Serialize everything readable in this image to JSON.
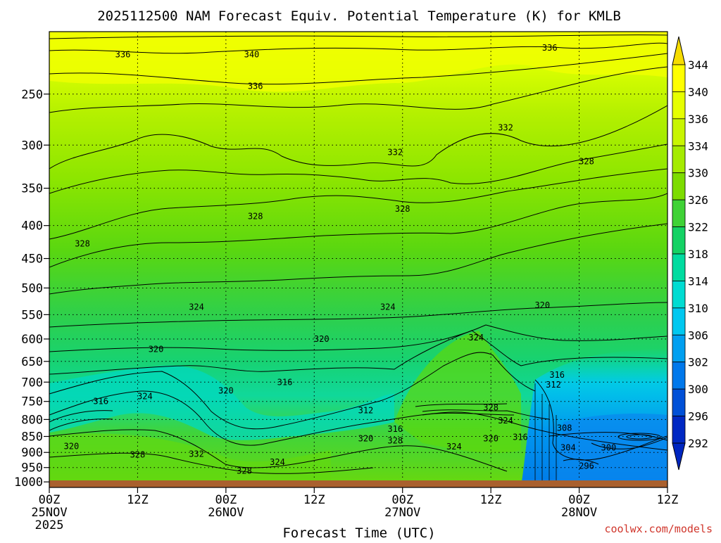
{
  "chart_data": {
    "type": "contour-filled",
    "title": "2025112500 NAM Forecast Equiv. Potential Temperature (K) for KMLB",
    "xlabel": "Forecast Time (UTC)",
    "ylabel": "",
    "y_axis": {
      "ticks": [
        "250",
        "300",
        "350",
        "400",
        "450",
        "500",
        "550",
        "600",
        "650",
        "700",
        "750",
        "800",
        "850",
        "900",
        "950",
        "1000"
      ],
      "values": [
        250,
        300,
        350,
        400,
        450,
        500,
        550,
        600,
        650,
        700,
        750,
        800,
        850,
        900,
        950,
        1000
      ],
      "range": [
        200,
        1020
      ],
      "scale": "log-pressure"
    },
    "x_axis": {
      "hours": [
        0,
        12,
        24,
        36,
        48,
        60,
        72,
        84
      ],
      "ticks": [
        {
          "h": 0,
          "lines": [
            "00Z",
            "25NOV",
            "2025"
          ]
        },
        {
          "h": 12,
          "lines": [
            "12Z"
          ]
        },
        {
          "h": 24,
          "lines": [
            "00Z",
            "26NOV"
          ]
        },
        {
          "h": 36,
          "lines": [
            "12Z"
          ]
        },
        {
          "h": 48,
          "lines": [
            "00Z",
            "27NOV"
          ]
        },
        {
          "h": 60,
          "lines": [
            "12Z"
          ]
        },
        {
          "h": 72,
          "lines": [
            "00Z",
            "28NOV"
          ]
        },
        {
          "h": 84,
          "lines": [
            "12Z"
          ]
        }
      ],
      "range": [
        0,
        84
      ]
    },
    "grid": true,
    "colorbar": {
      "levels": [
        "344",
        "340",
        "336",
        "334",
        "330",
        "326",
        "322",
        "318",
        "314",
        "310",
        "306",
        "302",
        "300",
        "296",
        "292"
      ],
      "colors": [
        "#f6dc00",
        "#ffff00",
        "#e6ff00",
        "#c8f500",
        "#a5eb00",
        "#7ddc00",
        "#3fd236",
        "#14d264",
        "#00dca0",
        "#00dcd2",
        "#00c8f0",
        "#009ff0",
        "#0078eb",
        "#0050d7",
        "#0028c3"
      ]
    },
    "contour_labels": [
      {
        "h": 10,
        "p": 217,
        "v": "336"
      },
      {
        "h": 27.5,
        "p": 217,
        "v": "340"
      },
      {
        "h": 28,
        "p": 243,
        "v": "336"
      },
      {
        "h": 68,
        "p": 212,
        "v": "336"
      },
      {
        "h": 47,
        "p": 308,
        "v": "332"
      },
      {
        "h": 62,
        "p": 282,
        "v": "332"
      },
      {
        "h": 73,
        "p": 318,
        "v": "328"
      },
      {
        "h": 28,
        "p": 387,
        "v": "328"
      },
      {
        "h": 48,
        "p": 377,
        "v": "328"
      },
      {
        "h": 4.5,
        "p": 427,
        "v": "328"
      },
      {
        "h": 20,
        "p": 535,
        "v": "324"
      },
      {
        "h": 46,
        "p": 535,
        "v": "324"
      },
      {
        "h": 67,
        "p": 532,
        "v": "320"
      },
      {
        "h": 37,
        "p": 600,
        "v": "320"
      },
      {
        "h": 14.5,
        "p": 622,
        "v": "320"
      },
      {
        "h": 58,
        "p": 597,
        "v": "324"
      },
      {
        "h": 69,
        "p": 682,
        "v": "316"
      },
      {
        "h": 32,
        "p": 700,
        "v": "316"
      },
      {
        "h": 24,
        "p": 722,
        "v": "320"
      },
      {
        "h": 68.5,
        "p": 707,
        "v": "312"
      },
      {
        "h": 7,
        "p": 750,
        "v": "316"
      },
      {
        "h": 13,
        "p": 737,
        "v": "324"
      },
      {
        "h": 43,
        "p": 775,
        "v": "312"
      },
      {
        "h": 60,
        "p": 767,
        "v": "328"
      },
      {
        "h": 62,
        "p": 803,
        "v": "324"
      },
      {
        "h": 70,
        "p": 825,
        "v": "308"
      },
      {
        "h": 47,
        "p": 828,
        "v": "316"
      },
      {
        "h": 43,
        "p": 857,
        "v": "320"
      },
      {
        "h": 47,
        "p": 863,
        "v": "328"
      },
      {
        "h": 60,
        "p": 857,
        "v": "320"
      },
      {
        "h": 64,
        "p": 852,
        "v": "316"
      },
      {
        "h": 3,
        "p": 880,
        "v": "320"
      },
      {
        "h": 55,
        "p": 882,
        "v": "324"
      },
      {
        "h": 70.5,
        "p": 885,
        "v": "304"
      },
      {
        "h": 76,
        "p": 885,
        "v": "300"
      },
      {
        "h": 12,
        "p": 908,
        "v": "328"
      },
      {
        "h": 20,
        "p": 905,
        "v": "332"
      },
      {
        "h": 31,
        "p": 932,
        "v": "324"
      },
      {
        "h": 73,
        "p": 945,
        "v": "296"
      },
      {
        "h": 26.5,
        "p": 962,
        "v": "328"
      }
    ]
  },
  "credit": "coolwx.com/models",
  "colors": {
    "ground": "#a9602e",
    "contour": "#000000"
  }
}
